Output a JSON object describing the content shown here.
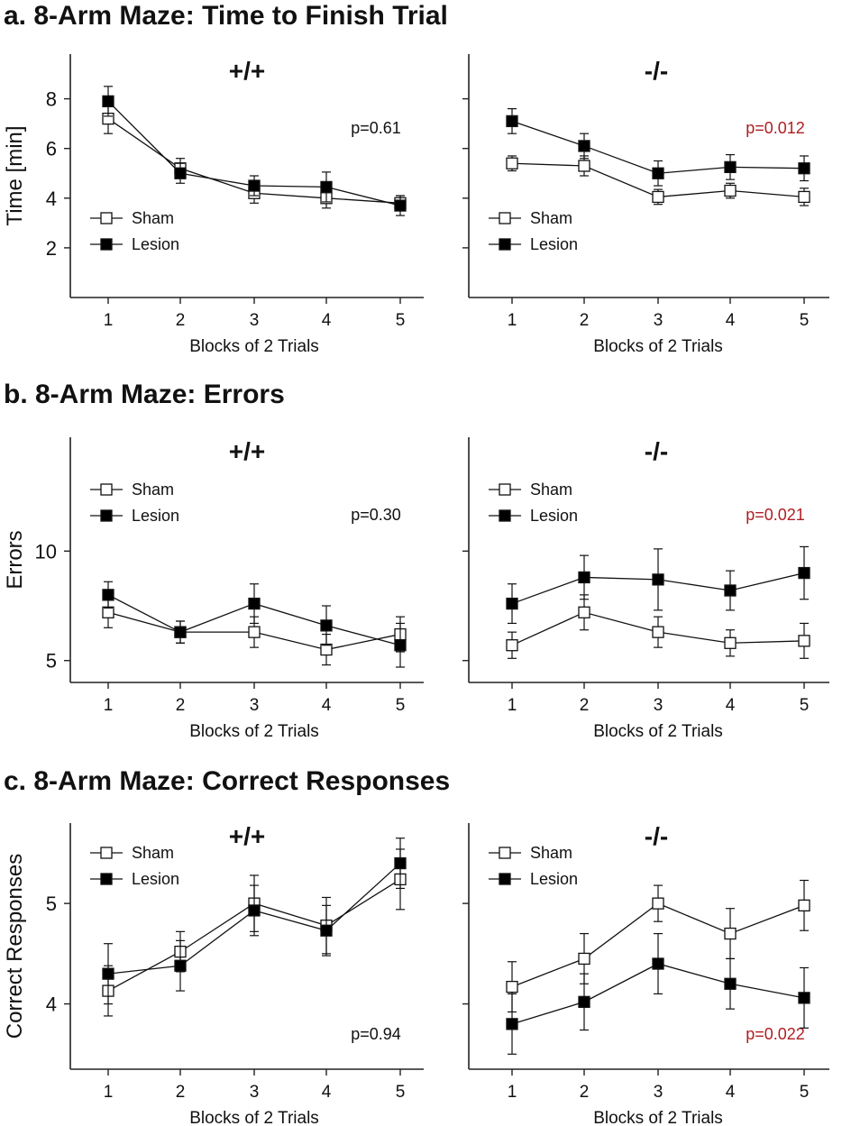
{
  "sections": [
    {
      "title": "a. 8-Arm Maze: Time to Finish Trial"
    },
    {
      "title": "b. 8-Arm Maze: Errors"
    },
    {
      "title": "c. 8-Arm Maze: Correct Responses"
    }
  ],
  "legend": {
    "sham": "Sham",
    "lesion": "Lesion"
  },
  "colors": {
    "axis": "#222222",
    "sham_fill": "#ffffff",
    "lesion_fill": "#000000",
    "p_normal": "#111111",
    "p_significant": "#b01e23"
  },
  "chart_data": [
    {
      "type": "line",
      "section": 0,
      "title": "+/+",
      "p": "p=0.61",
      "p_significant": false,
      "xlabel": "Blocks of 2 Trials",
      "ylabel": "Time [min]",
      "x": [
        1,
        2,
        3,
        4,
        5
      ],
      "xlim": [
        0.4,
        5.4
      ],
      "ylim": [
        0,
        9.8
      ],
      "yticks": [
        2,
        4,
        6,
        8
      ],
      "legend_position": "bottom-left",
      "series": [
        {
          "name": "Sham",
          "values": [
            7.2,
            5.2,
            4.2,
            4.0,
            3.8
          ],
          "errors": [
            0.6,
            0.4,
            0.4,
            0.4,
            0.3
          ]
        },
        {
          "name": "Lesion",
          "values": [
            7.9,
            5.0,
            4.5,
            4.45,
            3.7
          ],
          "errors": [
            0.6,
            0.4,
            0.4,
            0.6,
            0.4
          ]
        }
      ]
    },
    {
      "type": "line",
      "section": 0,
      "title": "-/-",
      "p": "p=0.012",
      "p_significant": true,
      "xlabel": "Blocks of 2 Trials",
      "ylabel": "",
      "x": [
        1,
        2,
        3,
        4,
        5
      ],
      "xlim": [
        0.4,
        5.4
      ],
      "ylim": [
        0,
        9.8
      ],
      "yticks": [
        2,
        4,
        6,
        8
      ],
      "legend_position": "bottom-left",
      "series": [
        {
          "name": "Sham",
          "values": [
            5.4,
            5.3,
            4.05,
            4.3,
            4.05
          ],
          "errors": [
            0.3,
            0.4,
            0.3,
            0.3,
            0.35
          ]
        },
        {
          "name": "Lesion",
          "values": [
            7.1,
            6.1,
            5.0,
            5.25,
            5.2
          ],
          "errors": [
            0.5,
            0.5,
            0.5,
            0.5,
            0.5
          ]
        }
      ]
    },
    {
      "type": "line",
      "section": 1,
      "title": "+/+",
      "p": "p=0.30",
      "p_significant": false,
      "xlabel": "Blocks of 2 Trials",
      "ylabel": "Errors",
      "x": [
        1,
        2,
        3,
        4,
        5
      ],
      "xlim": [
        0.4,
        5.4
      ],
      "ylim": [
        4.0,
        15.2
      ],
      "yticks": [
        5,
        10
      ],
      "legend_position": "top-left",
      "series": [
        {
          "name": "Sham",
          "values": [
            7.2,
            6.3,
            6.3,
            5.5,
            6.2
          ],
          "errors": [
            0.7,
            0.5,
            0.7,
            0.7,
            0.8
          ]
        },
        {
          "name": "Lesion",
          "values": [
            8.0,
            6.3,
            7.6,
            6.6,
            5.7
          ],
          "errors": [
            0.6,
            0.5,
            0.9,
            0.9,
            1.0
          ]
        }
      ]
    },
    {
      "type": "line",
      "section": 1,
      "title": "-/-",
      "p": "p=0.021",
      "p_significant": true,
      "xlabel": "Blocks of 2 Trials",
      "ylabel": "",
      "x": [
        1,
        2,
        3,
        4,
        5
      ],
      "xlim": [
        0.4,
        5.4
      ],
      "ylim": [
        4.0,
        15.2
      ],
      "yticks": [
        5,
        10
      ],
      "legend_position": "top-left",
      "series": [
        {
          "name": "Sham",
          "values": [
            5.7,
            7.2,
            6.3,
            5.8,
            5.9
          ],
          "errors": [
            0.6,
            0.8,
            0.7,
            0.6,
            0.8
          ]
        },
        {
          "name": "Lesion",
          "values": [
            7.6,
            8.8,
            8.7,
            8.2,
            9.0
          ],
          "errors": [
            0.9,
            1.0,
            1.4,
            0.9,
            1.2
          ]
        }
      ]
    },
    {
      "type": "line",
      "section": 2,
      "title": "+/+",
      "p": "p=0.94",
      "p_significant": false,
      "xlabel": "Blocks of 2 Trials",
      "ylabel": "Correct Responses",
      "x": [
        1,
        2,
        3,
        4,
        5
      ],
      "xlim": [
        0.4,
        5.4
      ],
      "ylim": [
        3.35,
        5.8
      ],
      "yticks": [
        4,
        5
      ],
      "legend_position": "top-left",
      "series": [
        {
          "name": "Sham",
          "values": [
            4.13,
            4.52,
            5.0,
            4.78,
            5.24
          ],
          "errors": [
            0.25,
            0.2,
            0.28,
            0.28,
            0.3
          ]
        },
        {
          "name": "Lesion",
          "values": [
            4.3,
            4.38,
            4.93,
            4.73,
            5.4
          ],
          "errors": [
            0.3,
            0.25,
            0.25,
            0.25,
            0.25
          ]
        }
      ]
    },
    {
      "type": "line",
      "section": 2,
      "title": "-/-",
      "p": "p=0.022",
      "p_significant": true,
      "xlabel": "Blocks of 2 Trials",
      "ylabel": "",
      "x": [
        1,
        2,
        3,
        4,
        5
      ],
      "xlim": [
        0.4,
        5.4
      ],
      "ylim": [
        3.35,
        5.8
      ],
      "yticks": [
        4,
        5
      ],
      "legend_position": "top-left",
      "series": [
        {
          "name": "Sham",
          "values": [
            4.17,
            4.45,
            5.0,
            4.7,
            4.98
          ],
          "errors": [
            0.25,
            0.25,
            0.18,
            0.25,
            0.25
          ]
        },
        {
          "name": "Lesion",
          "values": [
            3.8,
            4.02,
            4.4,
            4.2,
            4.06
          ],
          "errors": [
            0.3,
            0.28,
            0.3,
            0.25,
            0.3
          ]
        }
      ]
    }
  ]
}
